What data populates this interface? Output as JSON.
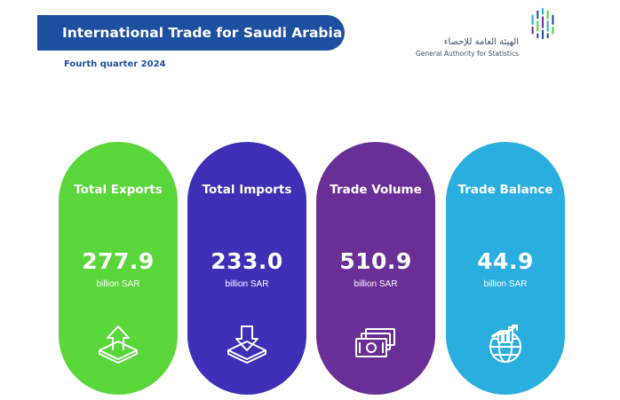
{
  "header": {
    "title": "International Trade for Saudi Arabia",
    "subtitle": "Fourth quarter 2024"
  },
  "logo": {
    "arabic_name": "الهيئة العامة للإحصاء",
    "english_name": "General Authority for Statistics",
    "icon": "gastat-logo-mark",
    "colors": [
      "#1d4fa0",
      "#2aaee0",
      "#59d63a",
      "#6a2f96"
    ]
  },
  "cards": [
    {
      "label": "Total Exports",
      "value": "277.9",
      "unit": "billion SAR",
      "icon": "export-tray-arrow-up-icon",
      "color": "#59d63a"
    },
    {
      "label": "Total Imports",
      "value": "233.0",
      "unit": "billion SAR",
      "icon": "import-tray-arrow-down-icon",
      "color": "#3d2fb6"
    },
    {
      "label": "Trade Volume",
      "value": "510.9",
      "unit": "billion SAR",
      "icon": "banknotes-stack-icon",
      "color": "#6a2f96"
    },
    {
      "label": "Trade Balance",
      "value": "44.9",
      "unit": "billion SAR",
      "icon": "globe-growth-chart-icon",
      "color": "#2aaee0"
    }
  ]
}
